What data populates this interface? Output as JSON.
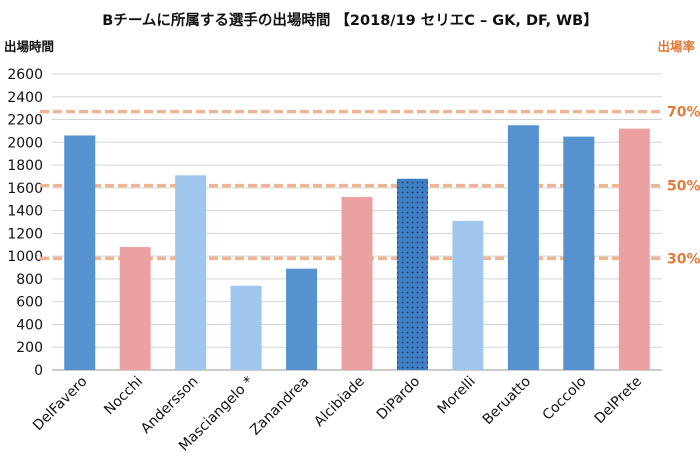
{
  "chart_data": {
    "type": "bar",
    "title": "Bチームに所属する選手の出場時間 【2018/19 セリエC – GK, DF, WB】",
    "ylabel": "出場時間",
    "y2label": "出場率",
    "ylim": [
      0,
      2600
    ],
    "yticks": [
      0,
      200,
      400,
      600,
      800,
      1000,
      1200,
      1400,
      1600,
      1800,
      2000,
      2200,
      2400,
      2600
    ],
    "grid": true,
    "legend": "none",
    "categories": [
      "DelFavero",
      "Nocchi",
      "Andersson",
      "Masciangelo *",
      "Zanandrea",
      "Alcibiade",
      "DiPardo",
      "Morelli",
      "Beruatto",
      "Coccolo",
      "DelPrete"
    ],
    "values": [
      2060,
      1080,
      1710,
      740,
      890,
      1520,
      1680,
      1310,
      2150,
      2050,
      2120
    ],
    "bar_styles": [
      "dark-blue",
      "pink",
      "light-blue",
      "light-blue",
      "dark-blue",
      "pink",
      "dotted-blue",
      "light-blue",
      "dark-blue",
      "dark-blue",
      "pink"
    ],
    "reference_lines": [
      {
        "label": "30%",
        "value": 980
      },
      {
        "label": "50%",
        "value": 1620
      },
      {
        "label": "70%",
        "value": 2270
      }
    ]
  },
  "colors": {
    "dark-blue": "#5592cf",
    "pink": "#eba1a2",
    "light-blue": "#9fc6ec",
    "dotted-blue": "#3f7fc4",
    "dotted-dot": "#1d3c63",
    "reference": "#f0b493",
    "grid": "#d4d4d4",
    "right-axis": "#e07b39"
  }
}
